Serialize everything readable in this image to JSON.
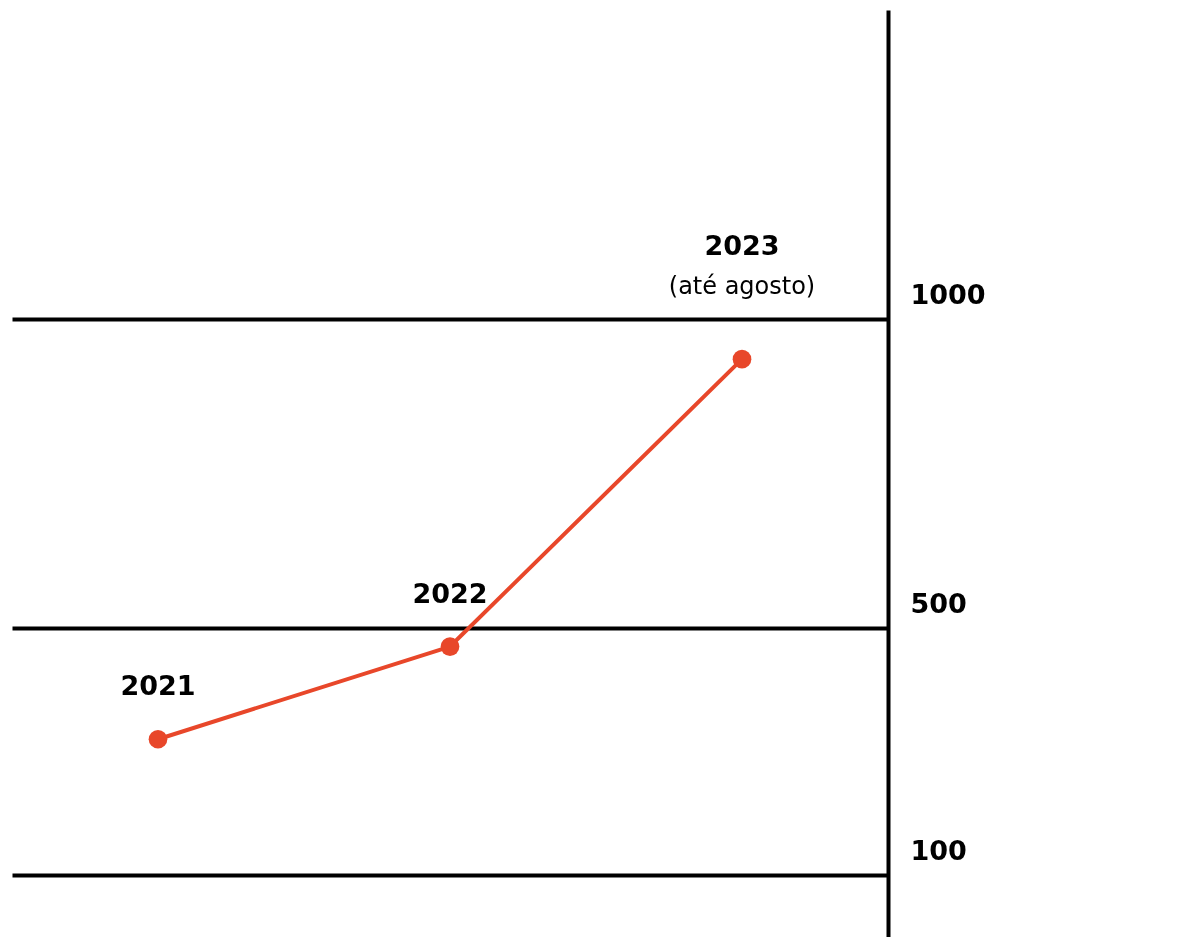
{
  "chart_data": {
    "type": "line",
    "categories": [
      "2021",
      "2022",
      "2023"
    ],
    "series": [
      {
        "color": "#e8472a",
        "values": [
          320,
          470,
          935
        ]
      }
    ],
    "ylim": [
      0,
      1500
    ],
    "yticks": [
      100,
      500,
      1000
    ],
    "grid": "y",
    "marker": "circle",
    "annotations": [
      {
        "text": "(até agosto)",
        "x": "2023",
        "y": 935
      }
    ]
  }
}
